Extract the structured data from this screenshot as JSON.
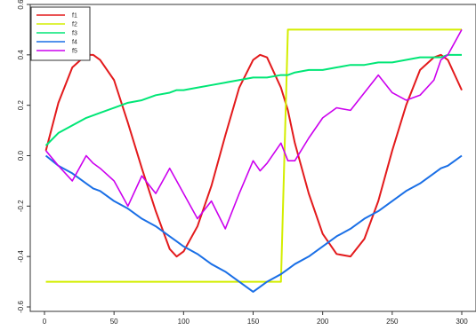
{
  "chart_data": {
    "type": "line",
    "xlim": [
      0,
      300
    ],
    "ylim": [
      -0.6,
      0.6
    ],
    "x_ticks": [
      0,
      50,
      100,
      150,
      200,
      250,
      300
    ],
    "y_ticks": [
      -0.6,
      -0.4,
      -0.2,
      0.0,
      0.2,
      0.4,
      0.6
    ],
    "x_tick_labels": [
      "0",
      "50",
      "100",
      "150",
      "200",
      "250",
      "300"
    ],
    "y_tick_labels": [
      "-0.6",
      "-0.4",
      "-0.2",
      "0.0",
      "0.2",
      "0.4",
      "0.6"
    ],
    "grid": false,
    "legend_position": "top-left",
    "x": [
      1,
      10,
      20,
      30,
      35,
      40,
      50,
      60,
      70,
      80,
      90,
      95,
      100,
      110,
      120,
      130,
      140,
      150,
      155,
      160,
      170,
      175,
      180,
      190,
      200,
      210,
      220,
      230,
      240,
      250,
      260,
      270,
      280,
      285,
      290,
      300
    ],
    "series": [
      {
        "name": "f1",
        "color": "#e31a1c",
        "values": [
          0.02,
          0.21,
          0.35,
          0.4,
          0.4,
          0.38,
          0.3,
          0.13,
          -0.05,
          -0.22,
          -0.37,
          -0.4,
          -0.38,
          -0.28,
          -0.12,
          0.08,
          0.27,
          0.38,
          0.4,
          0.39,
          0.27,
          0.18,
          0.05,
          -0.15,
          -0.31,
          -0.39,
          -0.4,
          -0.33,
          -0.18,
          0.02,
          0.2,
          0.34,
          0.39,
          0.4,
          0.38,
          0.26
        ]
      },
      {
        "name": "f2",
        "color": "#d4ee00",
        "values": [
          -0.5,
          -0.5,
          -0.5,
          -0.5,
          -0.5,
          -0.5,
          -0.5,
          -0.5,
          -0.5,
          -0.5,
          -0.5,
          -0.5,
          -0.5,
          -0.5,
          -0.5,
          -0.5,
          -0.5,
          -0.5,
          -0.5,
          -0.5,
          -0.5,
          0.5,
          0.5,
          0.5,
          0.5,
          0.5,
          0.5,
          0.5,
          0.5,
          0.5,
          0.5,
          0.5,
          0.5,
          0.5,
          0.5,
          0.5
        ]
      },
      {
        "name": "f3",
        "color": "#00e676",
        "values": [
          0.04,
          0.09,
          0.12,
          0.15,
          0.16,
          0.17,
          0.19,
          0.21,
          0.22,
          0.24,
          0.25,
          0.26,
          0.26,
          0.27,
          0.28,
          0.29,
          0.3,
          0.31,
          0.31,
          0.31,
          0.32,
          0.32,
          0.33,
          0.34,
          0.34,
          0.35,
          0.36,
          0.36,
          0.37,
          0.37,
          0.38,
          0.39,
          0.39,
          0.39,
          0.4,
          0.4
        ]
      },
      {
        "name": "f4",
        "color": "#1a6fe6",
        "values": [
          0.0,
          -0.04,
          -0.07,
          -0.11,
          -0.13,
          -0.14,
          -0.18,
          -0.21,
          -0.25,
          -0.28,
          -0.32,
          -0.34,
          -0.36,
          -0.39,
          -0.43,
          -0.46,
          -0.5,
          -0.54,
          -0.52,
          -0.5,
          -0.47,
          -0.45,
          -0.43,
          -0.4,
          -0.36,
          -0.32,
          -0.29,
          -0.25,
          -0.22,
          -0.18,
          -0.14,
          -0.11,
          -0.07,
          -0.05,
          -0.04,
          0.0
        ]
      },
      {
        "name": "f5",
        "color": "#cc00ee",
        "values": [
          0.02,
          -0.04,
          -0.1,
          0.0,
          -0.03,
          -0.05,
          -0.1,
          -0.2,
          -0.08,
          -0.15,
          -0.05,
          -0.1,
          -0.15,
          -0.25,
          -0.18,
          -0.29,
          -0.15,
          -0.02,
          -0.06,
          -0.03,
          0.05,
          -0.02,
          -0.02,
          0.07,
          0.15,
          0.19,
          0.18,
          0.25,
          0.32,
          0.25,
          0.22,
          0.24,
          0.3,
          0.38,
          0.4,
          0.5
        ]
      }
    ]
  }
}
